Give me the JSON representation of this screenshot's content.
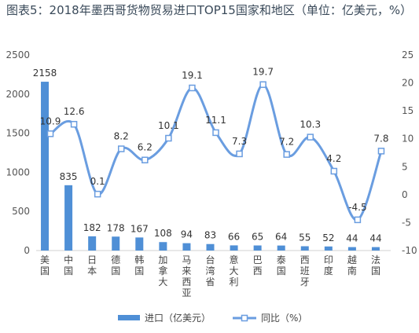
{
  "title": "图表5：2018年墨西哥货物贸易进口TOP15国家和地区（单位：亿美元，%）",
  "chart_data": {
    "type": "bar",
    "categories": [
      "美国",
      "中国",
      "日本",
      "德国",
      "韩国",
      "加拿大",
      "马来西亚",
      "台湾省",
      "意大利",
      "巴西",
      "泰国",
      "西班牙",
      "印度",
      "越南",
      "法国"
    ],
    "series": [
      {
        "name": "进口（亿美元）",
        "type": "bar",
        "axis": "left",
        "color": "#4f8fd6",
        "values": [
          2158,
          835,
          182,
          178,
          167,
          108,
          94,
          83,
          66,
          65,
          64,
          55,
          52,
          44,
          44
        ]
      },
      {
        "name": "同比（%）",
        "type": "line",
        "smooth": true,
        "axis": "right",
        "color": "#6a9de0",
        "values": [
          10.9,
          12.6,
          0.1,
          8.2,
          6.2,
          10.1,
          19.1,
          11.1,
          7.3,
          19.7,
          7.2,
          10.3,
          4.2,
          -4.5,
          7.8
        ]
      }
    ],
    "ylim_left": [
      0,
      2500
    ],
    "yticks_left": [
      0,
      500,
      1000,
      1500,
      2000,
      2500
    ],
    "ylim_right": [
      -10,
      25
    ],
    "yticks_right": [
      -10,
      -5,
      0,
      5,
      10,
      15,
      20,
      25
    ],
    "grid": false,
    "legend_position": "bottom-center"
  }
}
